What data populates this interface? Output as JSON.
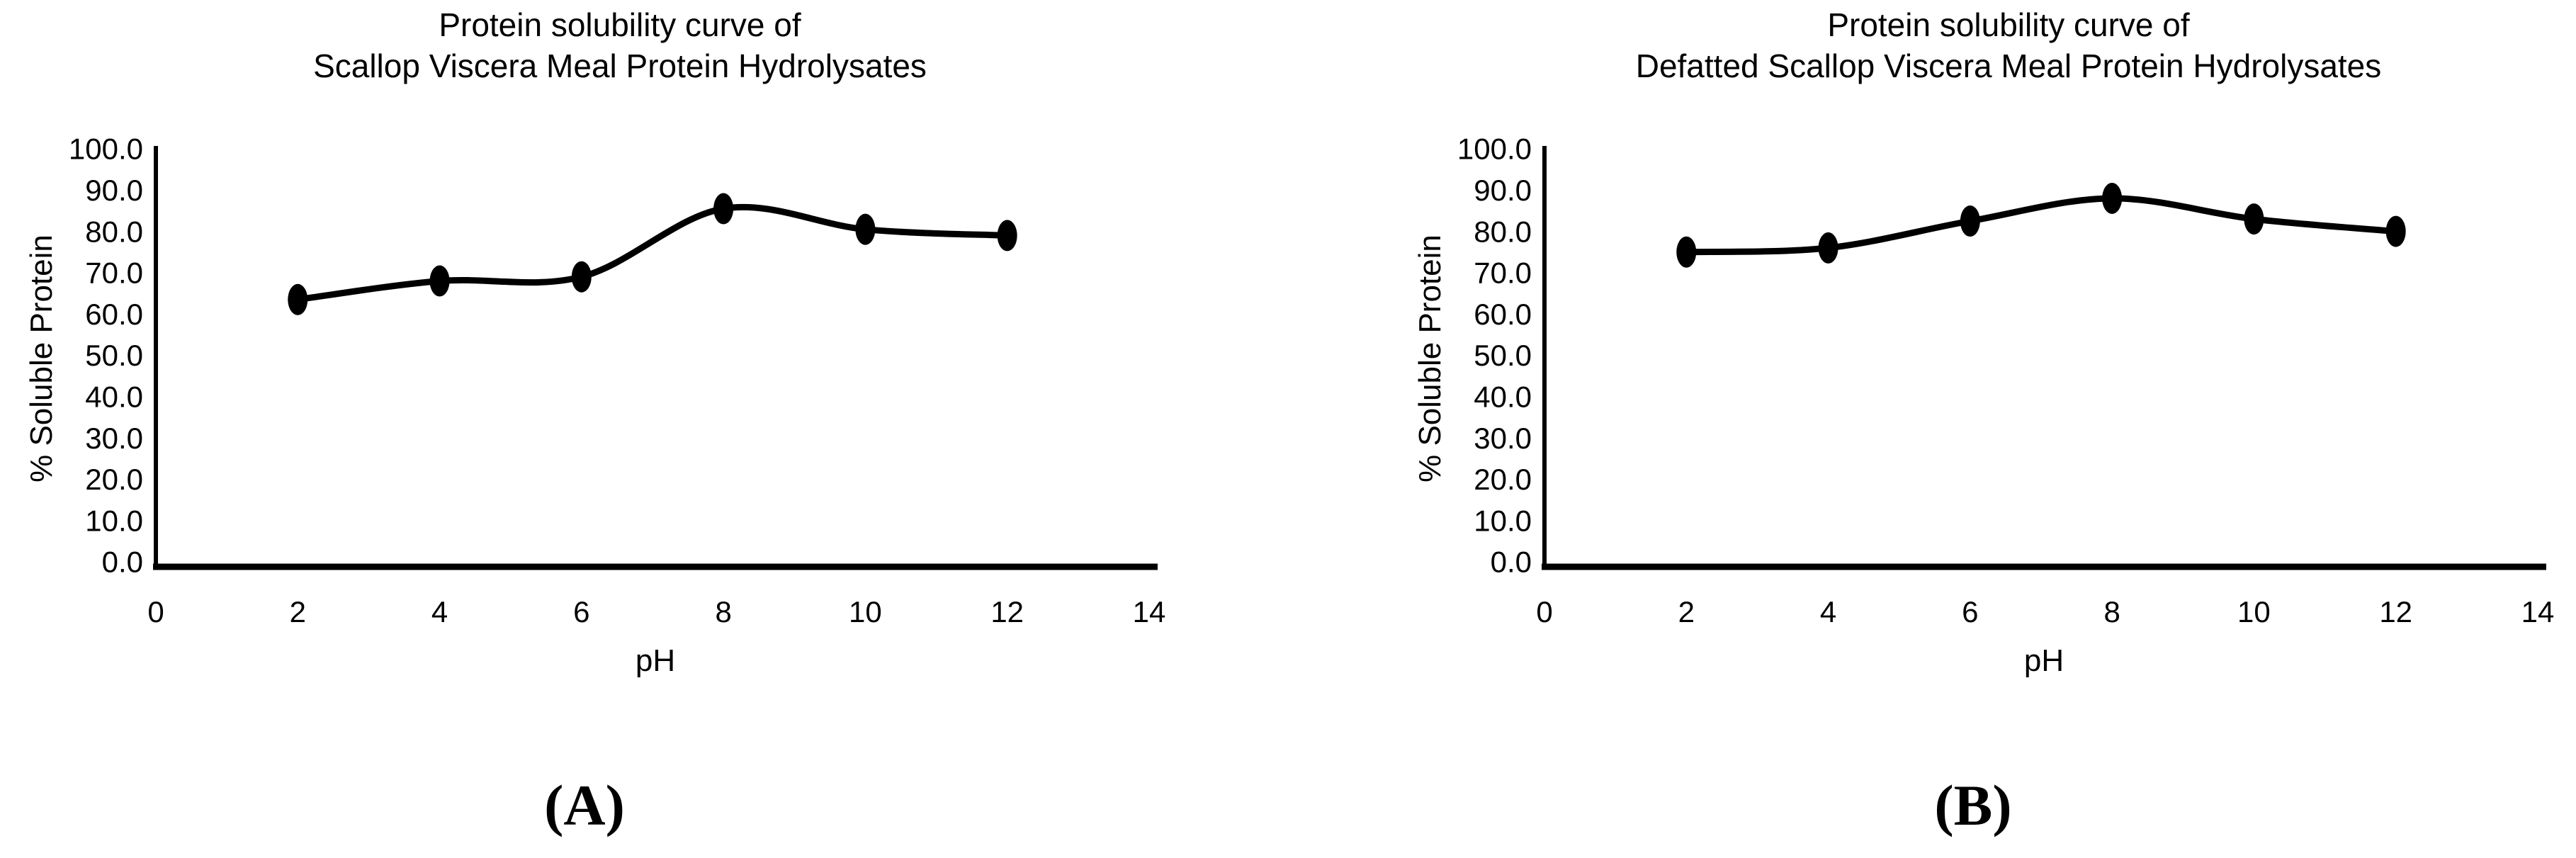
{
  "figure": {
    "background": "#ffffff",
    "ink_color": "#000000"
  },
  "chart_data": [
    {
      "panel": "A",
      "type": "line",
      "title": "Protein solubility curve of Scallop Viscera Meal Protein Hydrolysates",
      "title_lines": [
        "Protein solubility curve of",
        "Scallop Viscera Meal Protein Hydrolysates"
      ],
      "xlabel": "pH",
      "ylabel": "% Soluble Protein",
      "caption": "(A)",
      "x": [
        2,
        4,
        6,
        8,
        10,
        12
      ],
      "y": [
        63.5,
        68.0,
        69.0,
        85.5,
        80.5,
        79.0
      ],
      "xlim": [
        0,
        14
      ],
      "ylim": [
        0,
        100
      ],
      "xtick_step": 2,
      "ytick_step": 10,
      "ytick_decimals": 1,
      "grid": false,
      "legend": "none",
      "marker": "filled-ellipse",
      "line_color": "#000000",
      "smoothed": true
    },
    {
      "panel": "B",
      "type": "line",
      "title": "Protein solubility curve of Defatted Scallop Viscera Meal Protein Hydrolysates",
      "title_lines": [
        "Protein solubility curve of",
        "Defatted Scallop Viscera Meal Protein Hydrolysates"
      ],
      "xlabel": "pH",
      "ylabel": "% Soluble Protein",
      "caption": "(B)",
      "x": [
        2,
        4,
        6,
        8,
        10,
        12
      ],
      "y": [
        75.0,
        76.0,
        82.5,
        88.0,
        83.0,
        80.0
      ],
      "xlim": [
        0,
        14
      ],
      "ylim": [
        0,
        100
      ],
      "xtick_step": 2,
      "ytick_step": 10,
      "ytick_decimals": 1,
      "grid": false,
      "legend": "none",
      "marker": "filled-ellipse",
      "line_color": "#000000",
      "smoothed": true
    }
  ]
}
